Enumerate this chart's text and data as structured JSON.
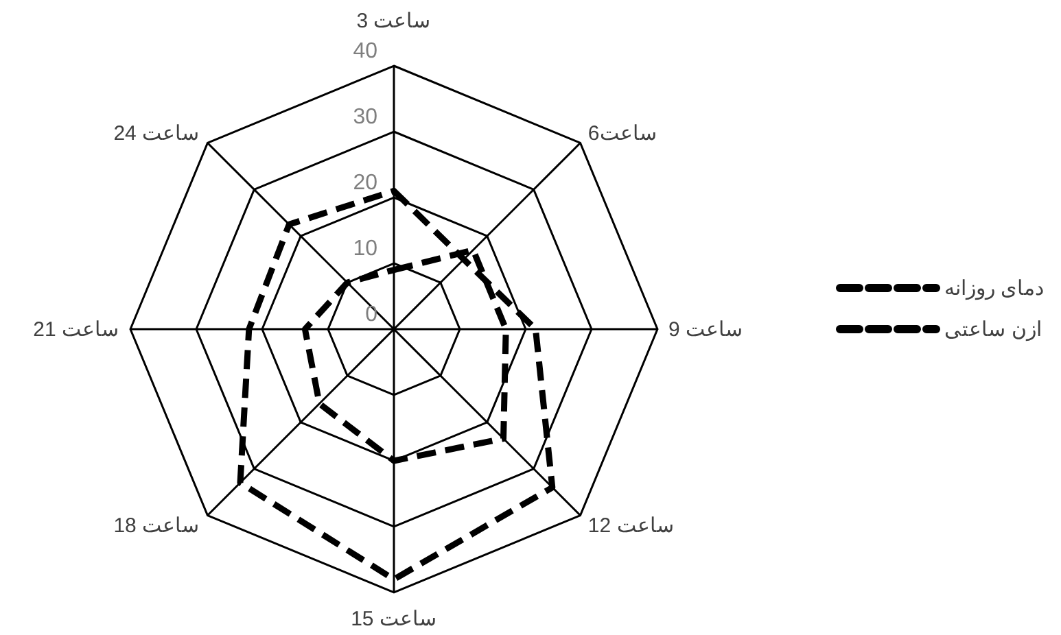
{
  "chart_data": {
    "type": "radar",
    "categories": [
      "ساعت 3",
      "ساعت6",
      "ساعت 9",
      "ساعت 12",
      "ساعت 15",
      "ساعت 18",
      "ساعت 21",
      "ساعت 24"
    ],
    "ylim": [
      0,
      40
    ],
    "yticks": [
      0,
      10,
      20,
      30,
      40
    ],
    "legend": "right",
    "line_style": "dashed",
    "grid": true,
    "series": [
      {
        "name": "دمای روزانه",
        "color": "#000000",
        "values": [
          9,
          17,
          17,
          23.5,
          20,
          16,
          13.5,
          10
        ]
      },
      {
        "name": "ازن ساعتی",
        "color": "#000000",
        "values": [
          21,
          15,
          21.5,
          34,
          38,
          33,
          22,
          22.5
        ]
      }
    ]
  }
}
